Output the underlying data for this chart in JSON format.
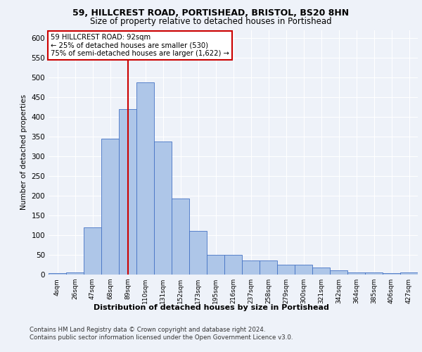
{
  "title1": "59, HILLCREST ROAD, PORTISHEAD, BRISTOL, BS20 8HN",
  "title2": "Size of property relative to detached houses in Portishead",
  "xlabel": "Distribution of detached houses by size in Portishead",
  "ylabel": "Number of detached properties",
  "bar_labels": [
    "4sqm",
    "26sqm",
    "47sqm",
    "68sqm",
    "89sqm",
    "110sqm",
    "131sqm",
    "152sqm",
    "173sqm",
    "195sqm",
    "216sqm",
    "237sqm",
    "258sqm",
    "279sqm",
    "300sqm",
    "321sqm",
    "342sqm",
    "364sqm",
    "385sqm",
    "406sqm",
    "427sqm"
  ],
  "bar_heights": [
    4,
    6,
    120,
    345,
    420,
    487,
    337,
    193,
    111,
    50,
    50,
    35,
    35,
    25,
    25,
    17,
    10,
    5,
    5,
    4,
    5
  ],
  "bar_color": "#aec6e8",
  "bar_edge_color": "#4472c4",
  "vline_x": 4,
  "vline_color": "#cc0000",
  "ylim": [
    0,
    620
  ],
  "yticks": [
    0,
    50,
    100,
    150,
    200,
    250,
    300,
    350,
    400,
    450,
    500,
    550,
    600
  ],
  "annotation_text": "59 HILLCREST ROAD: 92sqm\n← 25% of detached houses are smaller (530)\n75% of semi-detached houses are larger (1,622) →",
  "annotation_box_color": "#ffffff",
  "annotation_box_edge": "#cc0000",
  "footer1": "Contains HM Land Registry data © Crown copyright and database right 2024.",
  "footer2": "Contains public sector information licensed under the Open Government Licence v3.0.",
  "bg_color": "#eef2f9",
  "plot_bg_color": "#eef2f9",
  "grid_color": "#ffffff"
}
